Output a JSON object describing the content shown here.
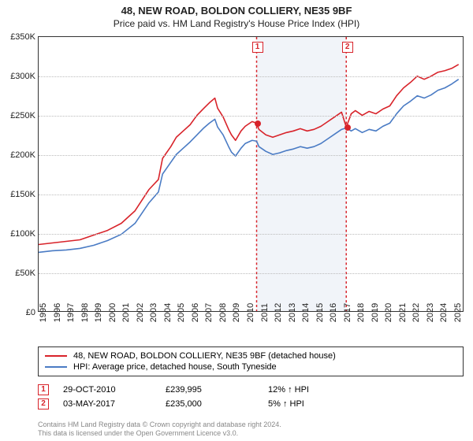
{
  "title": "48, NEW ROAD, BOLDON COLLIERY, NE35 9BF",
  "subtitle": "Price paid vs. HM Land Registry's House Price Index (HPI)",
  "chart": {
    "type": "line",
    "background_color": "#ffffff",
    "grid_color": "#bbbbbb",
    "border_color": "#333333",
    "x_range": [
      1995,
      2025.8
    ],
    "y_range": [
      0,
      350000
    ],
    "y_ticks": [
      0,
      50000,
      100000,
      150000,
      200000,
      250000,
      300000,
      350000
    ],
    "y_tick_labels": [
      "£0",
      "£50K",
      "£100K",
      "£150K",
      "£200K",
      "£250K",
      "£300K",
      "£350K"
    ],
    "x_ticks": [
      1995,
      1996,
      1997,
      1998,
      1999,
      2000,
      2001,
      2002,
      2003,
      2004,
      2005,
      2006,
      2007,
      2008,
      2009,
      2010,
      2011,
      2012,
      2013,
      2014,
      2015,
      2016,
      2017,
      2018,
      2019,
      2020,
      2021,
      2022,
      2023,
      2024,
      2025
    ],
    "shade_start": 2010.83,
    "shade_end": 2017.34,
    "series": [
      {
        "name": "property",
        "color": "#d8232a",
        "width": 1.6,
        "points": [
          [
            1995,
            85000
          ],
          [
            1996,
            87000
          ],
          [
            1997,
            89000
          ],
          [
            1998,
            91000
          ],
          [
            1999,
            97000
          ],
          [
            2000,
            103000
          ],
          [
            2001,
            112000
          ],
          [
            2002,
            128000
          ],
          [
            2003,
            155000
          ],
          [
            2003.7,
            168000
          ],
          [
            2004,
            195000
          ],
          [
            2004.6,
            210000
          ],
          [
            2005,
            222000
          ],
          [
            2005.5,
            230000
          ],
          [
            2006,
            238000
          ],
          [
            2006.5,
            250000
          ],
          [
            2007,
            259000
          ],
          [
            2007.4,
            266000
          ],
          [
            2007.8,
            272000
          ],
          [
            2008,
            259000
          ],
          [
            2008.4,
            248000
          ],
          [
            2008.8,
            232000
          ],
          [
            2009,
            225000
          ],
          [
            2009.3,
            218000
          ],
          [
            2009.7,
            230000
          ],
          [
            2010,
            236000
          ],
          [
            2010.5,
            242000
          ],
          [
            2010.83,
            239995
          ],
          [
            2011,
            232000
          ],
          [
            2011.5,
            225000
          ],
          [
            2012,
            222000
          ],
          [
            2012.5,
            225000
          ],
          [
            2013,
            228000
          ],
          [
            2013.5,
            230000
          ],
          [
            2014,
            233000
          ],
          [
            2014.5,
            230000
          ],
          [
            2015,
            232000
          ],
          [
            2015.5,
            236000
          ],
          [
            2016,
            242000
          ],
          [
            2016.5,
            248000
          ],
          [
            2017,
            254000
          ],
          [
            2017.34,
            235000
          ],
          [
            2017.7,
            252000
          ],
          [
            2018,
            256000
          ],
          [
            2018.5,
            250000
          ],
          [
            2019,
            255000
          ],
          [
            2019.5,
            252000
          ],
          [
            2020,
            258000
          ],
          [
            2020.5,
            262000
          ],
          [
            2021,
            275000
          ],
          [
            2021.5,
            285000
          ],
          [
            2022,
            292000
          ],
          [
            2022.5,
            300000
          ],
          [
            2023,
            296000
          ],
          [
            2023.5,
            300000
          ],
          [
            2024,
            305000
          ],
          [
            2024.5,
            307000
          ],
          [
            2025,
            310000
          ],
          [
            2025.5,
            315000
          ]
        ]
      },
      {
        "name": "hpi",
        "color": "#4a7bc4",
        "width": 1.6,
        "points": [
          [
            1995,
            75000
          ],
          [
            1996,
            77000
          ],
          [
            1997,
            78000
          ],
          [
            1998,
            80000
          ],
          [
            1999,
            84000
          ],
          [
            2000,
            90000
          ],
          [
            2001,
            98000
          ],
          [
            2002,
            112000
          ],
          [
            2003,
            138000
          ],
          [
            2003.7,
            152000
          ],
          [
            2004,
            175000
          ],
          [
            2004.6,
            190000
          ],
          [
            2005,
            200000
          ],
          [
            2005.5,
            208000
          ],
          [
            2006,
            216000
          ],
          [
            2006.5,
            225000
          ],
          [
            2007,
            234000
          ],
          [
            2007.4,
            240000
          ],
          [
            2007.8,
            245000
          ],
          [
            2008,
            235000
          ],
          [
            2008.4,
            225000
          ],
          [
            2008.8,
            210000
          ],
          [
            2009,
            203000
          ],
          [
            2009.3,
            198000
          ],
          [
            2009.7,
            208000
          ],
          [
            2010,
            214000
          ],
          [
            2010.5,
            218000
          ],
          [
            2010.83,
            217000
          ],
          [
            2011,
            210000
          ],
          [
            2011.5,
            204000
          ],
          [
            2012,
            200000
          ],
          [
            2012.5,
            202000
          ],
          [
            2013,
            205000
          ],
          [
            2013.5,
            207000
          ],
          [
            2014,
            210000
          ],
          [
            2014.5,
            208000
          ],
          [
            2015,
            210000
          ],
          [
            2015.5,
            214000
          ],
          [
            2016,
            220000
          ],
          [
            2016.5,
            226000
          ],
          [
            2017,
            232000
          ],
          [
            2017.34,
            234000
          ],
          [
            2017.7,
            230000
          ],
          [
            2018,
            233000
          ],
          [
            2018.5,
            228000
          ],
          [
            2019,
            232000
          ],
          [
            2019.5,
            230000
          ],
          [
            2020,
            236000
          ],
          [
            2020.5,
            240000
          ],
          [
            2021,
            252000
          ],
          [
            2021.5,
            262000
          ],
          [
            2022,
            268000
          ],
          [
            2022.5,
            275000
          ],
          [
            2023,
            272000
          ],
          [
            2023.5,
            276000
          ],
          [
            2024,
            282000
          ],
          [
            2024.5,
            285000
          ],
          [
            2025,
            290000
          ],
          [
            2025.5,
            296000
          ]
        ]
      }
    ],
    "markers": [
      {
        "id": "1",
        "x": 2010.83,
        "y": 239995,
        "color": "#d8232a"
      },
      {
        "id": "2",
        "x": 2017.34,
        "y": 235000,
        "color": "#d8232a"
      }
    ]
  },
  "legend": {
    "items": [
      {
        "color": "#d8232a",
        "label": "48, NEW ROAD, BOLDON COLLIERY, NE35 9BF (detached house)"
      },
      {
        "color": "#4a7bc4",
        "label": "HPI: Average price, detached house, South Tyneside"
      }
    ]
  },
  "sales": [
    {
      "id": "1",
      "date": "29-OCT-2010",
      "price": "£239,995",
      "delta": "12% ↑ HPI",
      "color": "#d8232a"
    },
    {
      "id": "2",
      "date": "03-MAY-2017",
      "price": "£235,000",
      "delta": "5% ↑ HPI",
      "color": "#d8232a"
    }
  ],
  "footnote_l1": "Contains HM Land Registry data © Crown copyright and database right 2024.",
  "footnote_l2": "This data is licensed under the Open Government Licence v3.0."
}
